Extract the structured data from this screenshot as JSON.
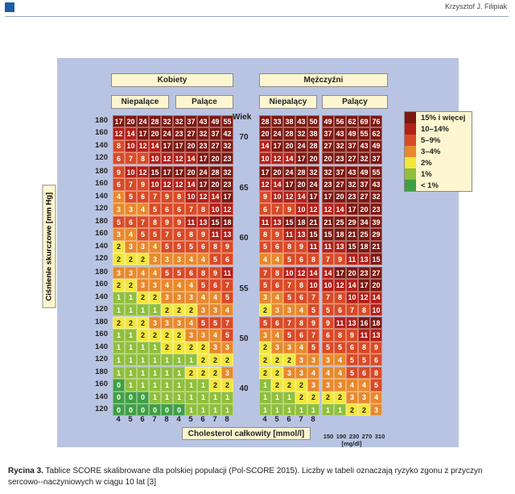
{
  "header": {
    "author": "Krzysztof J. Filipiak"
  },
  "figure": {
    "women": "Kobiety",
    "men": "Mężczyźni",
    "nonsmoking_women": "Niepalące",
    "smoking_women": "Palące",
    "nonsmoking_men": "Niepalący",
    "smoking_men": "Palący",
    "age_header": "Wiek",
    "bp_axis": "Ciśnienie skurczowe [mm Hg]",
    "chol_axis": "Cholesterol całkowity [mmol/l]",
    "mg_unit": "[mg/dl]",
    "bp_ticks": [
      "180",
      "160",
      "140",
      "120"
    ],
    "chol_ticks": [
      "4",
      "5",
      "6",
      "7",
      "8"
    ],
    "mg_ticks": [
      "150",
      "190",
      "230",
      "270",
      "310"
    ],
    "ages": [
      "70",
      "65",
      "60",
      "55",
      "50",
      "40"
    ],
    "legend": [
      "15% i więcej",
      "10–14%",
      "5–9%",
      "3–4%",
      "2%",
      "1%",
      "< 1%"
    ],
    "legend_colors": [
      "#7d1710",
      "#b32018",
      "#d94a26",
      "#e8892c",
      "#f3e63c",
      "#8fbf3c",
      "#3f9f45"
    ],
    "groups": [
      [
        [
          [
            17,
            20,
            24,
            28,
            32
          ],
          [
            12,
            14,
            17,
            20,
            24
          ],
          [
            8,
            10,
            12,
            14,
            17
          ],
          [
            6,
            7,
            8,
            10,
            12
          ]
        ],
        [
          [
            9,
            10,
            12,
            15,
            17
          ],
          [
            6,
            7,
            9,
            10,
            12
          ],
          [
            4,
            5,
            6,
            7,
            9
          ],
          [
            3,
            3,
            4,
            5,
            6
          ]
        ],
        [
          [
            5,
            6,
            7,
            8,
            9
          ],
          [
            3,
            4,
            5,
            5,
            7
          ],
          [
            2,
            3,
            3,
            4,
            5
          ],
          [
            2,
            2,
            2,
            3,
            3
          ]
        ],
        [
          [
            3,
            3,
            4,
            4,
            5
          ],
          [
            2,
            2,
            3,
            3,
            4
          ],
          [
            1,
            1,
            2,
            2,
            3
          ],
          [
            1,
            1,
            1,
            1,
            2
          ]
        ],
        [
          [
            2,
            2,
            2,
            3,
            3
          ],
          [
            1,
            1,
            2,
            2,
            2
          ],
          [
            1,
            1,
            1,
            1,
            2
          ],
          [
            1,
            1,
            1,
            1,
            1
          ]
        ],
        [
          [
            1,
            1,
            1,
            1,
            1
          ],
          [
            0,
            1,
            1,
            1,
            1
          ],
          [
            0,
            0,
            0,
            1,
            1
          ],
          [
            0,
            0,
            0,
            0,
            0
          ]
        ]
      ],
      [
        [
          [
            32,
            37,
            43,
            49,
            55
          ],
          [
            23,
            27,
            32,
            37,
            42
          ],
          [
            17,
            20,
            23,
            27,
            32
          ],
          [
            12,
            14,
            17,
            20,
            23
          ]
        ],
        [
          [
            17,
            20,
            24,
            28,
            32
          ],
          [
            12,
            14,
            17,
            20,
            23
          ],
          [
            8,
            10,
            12,
            14,
            17
          ],
          [
            6,
            7,
            8,
            10,
            12
          ]
        ],
        [
          [
            9,
            11,
            13,
            15,
            18
          ],
          [
            6,
            8,
            9,
            11,
            13
          ],
          [
            5,
            5,
            6,
            8,
            9
          ],
          [
            3,
            4,
            4,
            5,
            6
          ]
        ],
        [
          [
            5,
            6,
            8,
            9,
            11
          ],
          [
            4,
            4,
            5,
            6,
            7
          ],
          [
            3,
            3,
            4,
            4,
            5
          ],
          [
            2,
            2,
            3,
            3,
            4
          ]
        ],
        [
          [
            3,
            4,
            5,
            5,
            7
          ],
          [
            2,
            3,
            3,
            4,
            5
          ],
          [
            2,
            2,
            2,
            3,
            3
          ],
          [
            1,
            1,
            2,
            2,
            2
          ]
        ],
        [
          [
            1,
            2,
            2,
            2,
            3
          ],
          [
            1,
            1,
            1,
            2,
            2
          ],
          [
            1,
            1,
            1,
            1,
            1
          ],
          [
            0,
            1,
            1,
            1,
            1
          ]
        ]
      ],
      [
        [
          [
            28,
            33,
            38,
            43,
            50
          ],
          [
            20,
            24,
            28,
            32,
            38
          ],
          [
            14,
            17,
            20,
            24,
            28
          ],
          [
            10,
            12,
            14,
            17,
            20
          ]
        ],
        [
          [
            17,
            20,
            24,
            28,
            32
          ],
          [
            12,
            14,
            17,
            20,
            24
          ],
          [
            9,
            10,
            12,
            14,
            17
          ],
          [
            6,
            7,
            9,
            10,
            12
          ]
        ],
        [
          [
            11,
            13,
            15,
            18,
            21
          ],
          [
            8,
            9,
            11,
            13,
            15
          ],
          [
            5,
            6,
            8,
            9,
            11
          ],
          [
            4,
            4,
            5,
            6,
            8
          ]
        ],
        [
          [
            7,
            8,
            10,
            12,
            14
          ],
          [
            5,
            6,
            7,
            8,
            10
          ],
          [
            3,
            4,
            5,
            6,
            7
          ],
          [
            2,
            3,
            3,
            4,
            5
          ]
        ],
        [
          [
            5,
            6,
            7,
            8,
            9
          ],
          [
            3,
            4,
            5,
            6,
            7
          ],
          [
            2,
            3,
            3,
            4,
            5
          ],
          [
            2,
            2,
            2,
            3,
            3
          ]
        ],
        [
          [
            2,
            2,
            3,
            3,
            4
          ],
          [
            1,
            2,
            2,
            2,
            3
          ],
          [
            1,
            1,
            1,
            2,
            2
          ],
          [
            1,
            1,
            1,
            1,
            1
          ]
        ]
      ],
      [
        [
          [
            49,
            56,
            62,
            69,
            76
          ],
          [
            37,
            43,
            49,
            55,
            62
          ],
          [
            27,
            32,
            37,
            43,
            49
          ],
          [
            20,
            23,
            27,
            32,
            37
          ]
        ],
        [
          [
            32,
            37,
            43,
            49,
            55
          ],
          [
            23,
            27,
            32,
            37,
            43
          ],
          [
            17,
            20,
            23,
            27,
            32
          ],
          [
            12,
            14,
            17,
            20,
            23
          ]
        ],
        [
          [
            21,
            25,
            29,
            34,
            39
          ],
          [
            15,
            18,
            21,
            25,
            29
          ],
          [
            11,
            13,
            15,
            18,
            21
          ],
          [
            7,
            9,
            11,
            13,
            15
          ]
        ],
        [
          [
            14,
            17,
            20,
            23,
            27
          ],
          [
            10,
            12,
            14,
            17,
            20
          ],
          [
            7,
            8,
            10,
            12,
            14
          ],
          [
            5,
            6,
            7,
            8,
            10
          ]
        ],
        [
          [
            9,
            11,
            13,
            16,
            18
          ],
          [
            6,
            8,
            9,
            11,
            13
          ],
          [
            5,
            5,
            6,
            8,
            9
          ],
          [
            3,
            4,
            5,
            5,
            6
          ]
        ],
        [
          [
            4,
            4,
            5,
            6,
            8
          ],
          [
            3,
            3,
            4,
            4,
            5
          ],
          [
            2,
            2,
            3,
            3,
            4
          ],
          [
            1,
            1,
            2,
            2,
            3
          ]
        ]
      ]
    ]
  },
  "caption": {
    "label": "Rycina 3.",
    "text": "Tablice SCORE skalibrowane dla polskiej populacji (Pol-SCORE 2015). Liczby w tabeli oznaczają ryzyko zgonu z przyczyn sercowo--naczyniowych w ciągu 10 lat [3]"
  }
}
